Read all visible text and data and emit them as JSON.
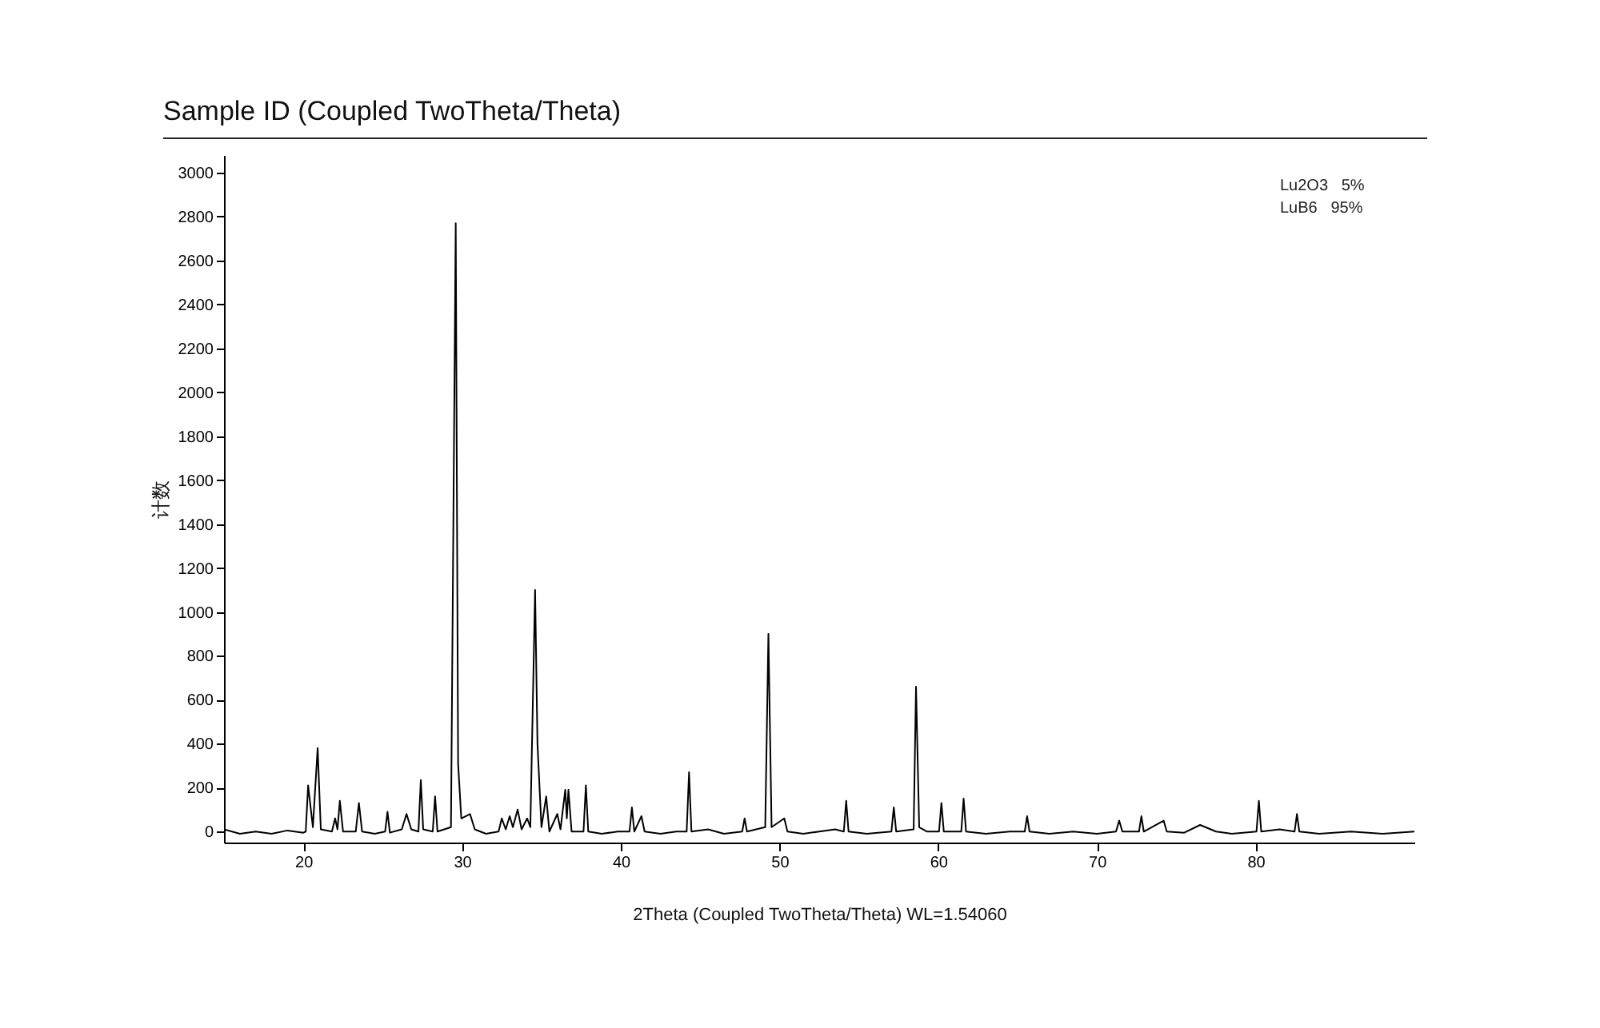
{
  "chart_data": {
    "type": "line",
    "title": "Sample ID (Coupled TwoTheta/Theta)",
    "xlabel": "2Theta (Coupled TwoTheta/Theta) WL=1.54060",
    "ylabel": "计数",
    "annotations": [
      "Lu2O3   5%",
      "LuB6   95%"
    ],
    "xlim": [
      15,
      90
    ],
    "xticks": [
      20,
      30,
      40,
      50,
      60,
      70,
      80
    ],
    "ylim": [
      -50,
      3080
    ],
    "yticks": [
      0,
      200,
      400,
      600,
      800,
      1000,
      1200,
      1400,
      1600,
      1800,
      2000,
      2200,
      2400,
      2600,
      2800,
      3000
    ],
    "grid": false,
    "marker": "none",
    "line_style": "solid",
    "series": [
      {
        "color": "#000000",
        "x": [
          15,
          16,
          17,
          18,
          19,
          20,
          20.15,
          20.3,
          20.6,
          20.9,
          21.1,
          21.8,
          22,
          22.15,
          22.3,
          22.5,
          23.3,
          23.5,
          23.7,
          24.5,
          25.15,
          25.3,
          25.45,
          26.2,
          26.5,
          26.8,
          27.25,
          27.4,
          27.55,
          28.15,
          28.3,
          28.45,
          29.3,
          29.6,
          29.75,
          29.95,
          30.5,
          30.8,
          31.5,
          32.3,
          32.5,
          32.75,
          33,
          33.2,
          33.5,
          33.75,
          34.1,
          34.3,
          34.6,
          34.75,
          35,
          35.3,
          35.5,
          36,
          36.2,
          36.5,
          36.6,
          36.7,
          36.9,
          37.65,
          37.8,
          37.95,
          38.8,
          39.8,
          40.55,
          40.7,
          40.85,
          41.3,
          41.5,
          42.5,
          43.5,
          44.15,
          44.3,
          44.45,
          45.5,
          46.5,
          47.65,
          47.8,
          47.95,
          49.1,
          49.3,
          49.5,
          50.3,
          50.5,
          51.5,
          52.5,
          53.5,
          54.05,
          54.2,
          54.35,
          55.5,
          57.05,
          57.2,
          57.35,
          58.45,
          58.6,
          58.8,
          59.3,
          60.05,
          60.2,
          60.35,
          61.45,
          61.6,
          61.75,
          63,
          64.5,
          65.45,
          65.6,
          65.75,
          67,
          68.5,
          70,
          71.2,
          71.4,
          71.6,
          72.65,
          72.8,
          72.95,
          74.2,
          74.4,
          75.5,
          76.5,
          77.5,
          78.5,
          80.05,
          80.2,
          80.35,
          81.5,
          82.45,
          82.6,
          82.75,
          84,
          86,
          88,
          90
        ],
        "values": [
          10,
          -10,
          0,
          -10,
          5,
          -5,
          0,
          210,
          20,
          380,
          10,
          0,
          60,
          10,
          140,
          0,
          0,
          130,
          0,
          -10,
          0,
          90,
          -5,
          10,
          80,
          10,
          0,
          235,
          10,
          0,
          160,
          0,
          20,
          2770,
          310,
          60,
          80,
          10,
          -10,
          0,
          60,
          10,
          70,
          20,
          100,
          10,
          60,
          20,
          1100,
          400,
          20,
          160,
          0,
          80,
          10,
          190,
          60,
          190,
          0,
          0,
          210,
          0,
          -10,
          0,
          0,
          110,
          0,
          70,
          0,
          -10,
          0,
          0,
          270,
          0,
          10,
          -10,
          0,
          60,
          0,
          20,
          900,
          20,
          60,
          0,
          -10,
          0,
          10,
          0,
          140,
          0,
          -10,
          0,
          110,
          0,
          10,
          660,
          20,
          0,
          0,
          130,
          0,
          0,
          150,
          0,
          -10,
          0,
          0,
          70,
          0,
          -10,
          0,
          -10,
          0,
          50,
          0,
          0,
          70,
          0,
          50,
          0,
          -5,
          30,
          0,
          -10,
          0,
          140,
          0,
          10,
          0,
          80,
          0,
          -10,
          0,
          -10,
          0
        ]
      }
    ]
  }
}
